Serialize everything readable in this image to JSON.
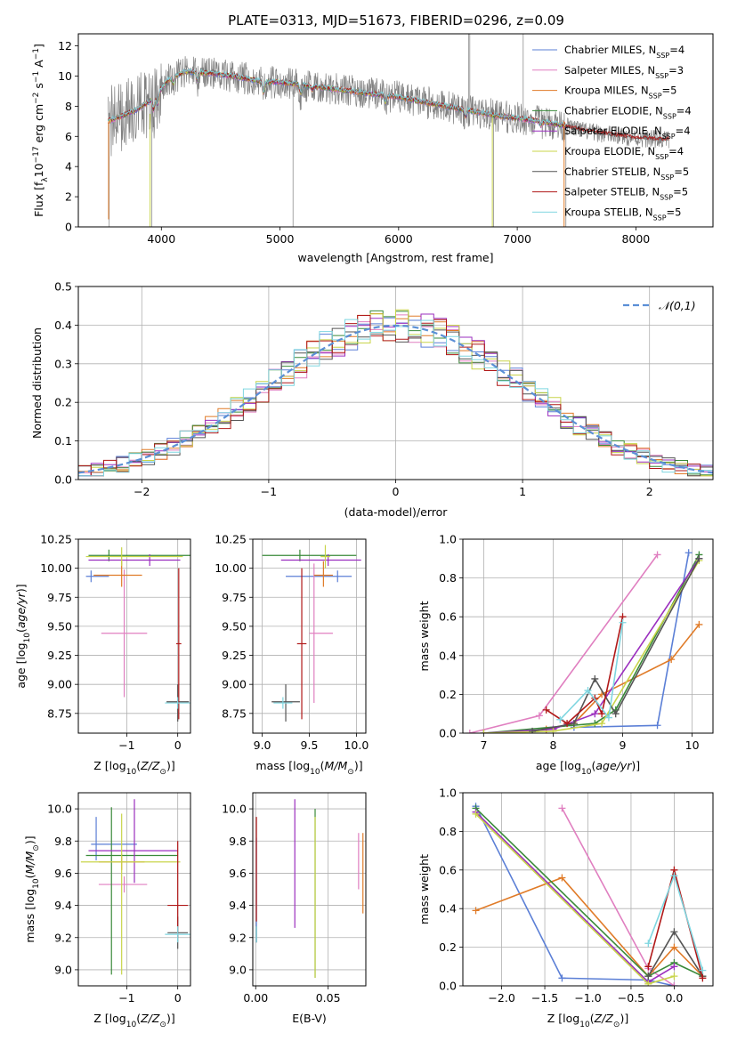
{
  "figure_title": "PLATE=0313, MJD=51673, FIBERID=0296, z=0.09",
  "colors": {
    "Chabrier MILES": "#5b7fd6",
    "Salpeter MILES": "#e07fc0",
    "Kroupa MILES": "#e07b28",
    "Chabrier ELODIE": "#3a8a3a",
    "Salpeter ELODIE": "#9b2fbf",
    "Kroupa ELODIE": "#c8d44a",
    "Chabrier STELIB": "#555555",
    "Salpeter STELIB": "#b01818",
    "Kroupa STELIB": "#7fd6e0"
  },
  "chart_data": [
    {
      "id": "spectrum",
      "type": "line",
      "title": "PLATE=0313, MJD=51673, FIBERID=0296, z=0.09",
      "xlabel": "wavelength [Angstrom, rest frame]",
      "ylabel": "Flux [f_λ10^-17 erg cm^-2 s^-1 A^-1]",
      "xlim": [
        3300,
        8650
      ],
      "ylim": [
        0,
        12.8
      ],
      "xticks": [
        4000,
        5000,
        6000,
        7000,
        8000
      ],
      "yticks": [
        0,
        2,
        4,
        6,
        8,
        10,
        12
      ],
      "grid": false,
      "legend_position": "top-right",
      "legend": [
        {
          "name": "Chabrier MILES",
          "nssp": "4"
        },
        {
          "name": "Salpeter MILES",
          "nssp": "3"
        },
        {
          "name": "Kroupa MILES",
          "nssp": "5"
        },
        {
          "name": "Chabrier ELODIE",
          "nssp": "4"
        },
        {
          "name": "Salpeter ELODIE",
          "nssp": "4"
        },
        {
          "name": "Kroupa ELODIE",
          "nssp": "4"
        },
        {
          "name": "Chabrier STELIB",
          "nssp": "5"
        },
        {
          "name": "Salpeter STELIB",
          "nssp": "5"
        },
        {
          "name": "Kroupa STELIB",
          "nssp": "5"
        }
      ],
      "continuum": {
        "x": [
          3550,
          3650,
          3800,
          3950,
          4050,
          4200,
          4400,
          4600,
          4800,
          4900,
          5000,
          5200,
          5400,
          5600,
          5800,
          6000,
          6200,
          6400,
          6600,
          6800,
          7000,
          7200,
          7400,
          7600,
          7800,
          8000,
          8200
        ],
        "y": [
          7.0,
          7.3,
          7.8,
          8.6,
          9.7,
          10.3,
          10.2,
          10.0,
          9.7,
          9.6,
          9.6,
          9.4,
          9.2,
          9.0,
          8.8,
          8.6,
          8.3,
          8.0,
          7.7,
          7.4,
          7.2,
          7.0,
          6.7,
          6.3,
          6.1,
          5.9,
          5.8
        ]
      },
      "model_spans": [
        [
          3550,
          7420
        ],
        [
          3550,
          7420
        ],
        [
          3550,
          7420
        ],
        [
          3550,
          7420
        ],
        [
          3550,
          7420
        ],
        [
          3550,
          7420
        ],
        [
          3550,
          8280
        ],
        [
          3550,
          8280
        ],
        [
          3550,
          7420
        ]
      ]
    },
    {
      "id": "residuals",
      "type": "line",
      "xlabel": "(data-model)/error",
      "ylabel": "Normed distribution",
      "xlim": [
        -2.5,
        2.5
      ],
      "ylim": [
        0,
        0.5
      ],
      "xticks": [
        -2,
        -1,
        0,
        1,
        2
      ],
      "yticks": [
        0.0,
        0.1,
        0.2,
        0.3,
        0.4,
        0.5
      ],
      "grid": true,
      "legend_position": "top-right",
      "reference_curve": {
        "name": "𝒩(0,1)",
        "mean": 0,
        "sigma": 1,
        "color": "#5b8fd6"
      },
      "bin_width": 0.1
    },
    {
      "id": "age-vs-Z",
      "type": "scatter",
      "xlabel": "Z [log10(Z/Z⊙)]",
      "ylabel": "age  [log10(age/yr)]",
      "xlim": [
        -1.95,
        0.25
      ],
      "ylim": [
        8.58,
        10.25
      ],
      "xticks": [
        -1,
        0
      ],
      "yticks": [
        8.75,
        9.0,
        9.25,
        9.5,
        9.75,
        10.0,
        10.25
      ],
      "grid": true,
      "points": [
        {
          "model": "Chabrier MILES",
          "x": -1.7,
          "xerr": [
            0.1,
            0.35
          ],
          "y": 9.93,
          "yerr": [
            0.05,
            0.05
          ]
        },
        {
          "model": "Salpeter MILES",
          "x": -1.05,
          "xerr": [
            0.45,
            0.45
          ],
          "y": 9.44,
          "yerr": [
            0.55,
            0.55
          ]
        },
        {
          "model": "Kroupa MILES",
          "x": -1.1,
          "xerr": [
            0.55,
            0.4
          ],
          "y": 9.94,
          "yerr": [
            0.1,
            0.12
          ]
        },
        {
          "model": "Chabrier ELODIE",
          "x": -1.35,
          "xerr": [
            0.4,
            1.6
          ],
          "y": 10.11,
          "yerr": [
            0.05,
            0.05
          ]
        },
        {
          "model": "Salpeter ELODIE",
          "x": -0.55,
          "xerr": [
            1.2,
            0.6
          ],
          "y": 10.07,
          "yerr": [
            0.05,
            0.05
          ]
        },
        {
          "model": "Kroupa ELODIE",
          "x": -1.1,
          "xerr": [
            0.7,
            1.2
          ],
          "y": 10.1,
          "yerr": [
            0.08,
            0.08
          ]
        },
        {
          "model": "Chabrier STELIB",
          "x": 0.0,
          "xerr": [
            0.22,
            0.22
          ],
          "y": 8.85,
          "yerr": [
            0.17,
            0.15
          ]
        },
        {
          "model": "Salpeter STELIB",
          "x": 0.02,
          "xerr": [
            0.05,
            0.05
          ],
          "y": 9.35,
          "yerr": [
            0.65,
            0.65
          ]
        },
        {
          "model": "Kroupa STELIB",
          "x": 0.0,
          "xerr": [
            0.25,
            0.25
          ],
          "y": 8.84,
          "yerr": [
            0.05,
            0.05
          ]
        }
      ]
    },
    {
      "id": "age-vs-mass",
      "type": "scatter",
      "xlabel": "mass [log10(M/M⊙)]",
      "ylabel": "",
      "xlim": [
        8.9,
        10.1
      ],
      "ylim": [
        8.58,
        10.25
      ],
      "xticks": [
        9.0,
        9.5,
        10.0
      ],
      "yticks": [
        8.75,
        9.0,
        9.25,
        9.5,
        9.75,
        10.0,
        10.25
      ],
      "grid": true,
      "points": [
        {
          "model": "Chabrier MILES",
          "x": 9.8,
          "xerr": [
            0.55,
            0.15
          ],
          "y": 9.93,
          "yerr": [
            0.05,
            0.05
          ]
        },
        {
          "model": "Salpeter MILES",
          "x": 9.55,
          "xerr": [
            0.05,
            0.2
          ],
          "y": 9.44,
          "yerr": [
            0.6,
            0.6
          ]
        },
        {
          "model": "Kroupa MILES",
          "x": 9.65,
          "xerr": [
            0.1,
            0.1
          ],
          "y": 9.94,
          "yerr": [
            0.1,
            0.12
          ]
        },
        {
          "model": "Chabrier ELODIE",
          "x": 9.4,
          "xerr": [
            0.4,
            0.6
          ],
          "y": 10.11,
          "yerr": [
            0.05,
            0.05
          ]
        },
        {
          "model": "Salpeter ELODIE",
          "x": 9.7,
          "xerr": [
            0.5,
            0.35
          ],
          "y": 10.07,
          "yerr": [
            0.05,
            0.05
          ]
        },
        {
          "model": "Kroupa ELODIE",
          "x": 9.67,
          "xerr": [
            0.05,
            0.05
          ],
          "y": 10.1,
          "yerr": [
            0.1,
            0.1
          ]
        },
        {
          "model": "Chabrier STELIB",
          "x": 9.25,
          "xerr": [
            0.15,
            0.15
          ],
          "y": 8.85,
          "yerr": [
            0.17,
            0.15
          ]
        },
        {
          "model": "Salpeter STELIB",
          "x": 9.42,
          "xerr": [
            0.05,
            0.05
          ],
          "y": 9.35,
          "yerr": [
            0.65,
            0.65
          ]
        },
        {
          "model": "Kroupa STELIB",
          "x": 9.22,
          "xerr": [
            0.1,
            0.1
          ],
          "y": 8.84,
          "yerr": [
            0.05,
            0.05
          ]
        }
      ]
    },
    {
      "id": "weight-vs-age",
      "type": "line",
      "xlabel": "age  [log10(age/yr)]",
      "ylabel": "mass weight",
      "xlim": [
        6.7,
        10.3
      ],
      "ylim": [
        0.0,
        1.0
      ],
      "xticks": [
        7,
        8,
        9,
        10
      ],
      "yticks": [
        0.0,
        0.2,
        0.4,
        0.6,
        0.8,
        1.0
      ],
      "grid": true,
      "series": [
        {
          "model": "Chabrier MILES",
          "x": [
            8.3,
            9.5,
            9.95
          ],
          "y": [
            0.03,
            0.04,
            0.93
          ]
        },
        {
          "model": "Salpeter MILES",
          "x": [
            6.8,
            7.8,
            9.5
          ],
          "y": [
            0.0,
            0.09,
            0.92
          ]
        },
        {
          "model": "Kroupa MILES",
          "x": [
            7.9,
            8.3,
            8.7,
            9.7,
            10.1
          ],
          "y": [
            0.02,
            0.05,
            0.2,
            0.38,
            0.56
          ]
        },
        {
          "model": "Chabrier ELODIE",
          "x": [
            7.0,
            8.6,
            8.9,
            10.1
          ],
          "y": [
            0.0,
            0.05,
            0.12,
            0.92
          ]
        },
        {
          "model": "Salpeter ELODIE",
          "x": [
            7.0,
            8.0,
            8.6,
            10.1
          ],
          "y": [
            0.0,
            0.02,
            0.1,
            0.9
          ]
        },
        {
          "model": "Kroupa ELODIE",
          "x": [
            7.0,
            8.0,
            8.7,
            10.1
          ],
          "y": [
            0.0,
            0.01,
            0.05,
            0.89
          ]
        },
        {
          "model": "Chabrier STELIB",
          "x": [
            7.7,
            8.3,
            8.6,
            8.9,
            10.1
          ],
          "y": [
            0.01,
            0.05,
            0.28,
            0.1,
            0.9
          ]
        },
        {
          "model": "Salpeter STELIB",
          "x": [
            7.9,
            8.2,
            8.6,
            8.7,
            9.0
          ],
          "y": [
            0.12,
            0.05,
            0.18,
            0.1,
            0.6
          ]
        },
        {
          "model": "Kroupa STELIB",
          "x": [
            8.1,
            8.5,
            8.8,
            9.0
          ],
          "y": [
            0.07,
            0.22,
            0.08,
            0.57
          ]
        }
      ]
    },
    {
      "id": "mass-vs-Z",
      "type": "scatter",
      "xlabel": "Z [log10(Z/Z⊙)]",
      "ylabel": "mass [log10(M/M⊙)]",
      "xlim": [
        -1.95,
        0.25
      ],
      "ylim": [
        8.9,
        10.1
      ],
      "xticks": [
        -1,
        0
      ],
      "yticks": [
        9.0,
        9.2,
        9.4,
        9.6,
        9.8,
        10.0
      ],
      "grid": true,
      "points": [
        {
          "model": "Chabrier MILES",
          "x": -1.6,
          "xerr": [
            0.1,
            0.8
          ],
          "y": 9.78,
          "yerr": [
            0.1,
            0.17
          ]
        },
        {
          "model": "Salpeter MILES",
          "x": -1.05,
          "xerr": [
            0.5,
            0.45
          ],
          "y": 9.53,
          "yerr": [
            0.05,
            0.05
          ]
        },
        {
          "model": "Kroupa MILES",
          "x": -1.1,
          "xerr": [
            0.45,
            0.45
          ],
          "y": 9.67,
          "yerr": [
            0.05,
            0.05
          ]
        },
        {
          "model": "Chabrier ELODIE",
          "x": -1.3,
          "xerr": [
            0.5,
            1.3
          ],
          "y": 9.71,
          "yerr": [
            0.74,
            0.3
          ]
        },
        {
          "model": "Salpeter ELODIE",
          "x": -0.85,
          "xerr": [
            0.9,
            0.85
          ],
          "y": 9.74,
          "yerr": [
            0.2,
            0.32
          ]
        },
        {
          "model": "Kroupa ELODIE",
          "x": -1.1,
          "xerr": [
            0.8,
            1.15
          ],
          "y": 9.67,
          "yerr": [
            0.7,
            0.3
          ]
        },
        {
          "model": "Chabrier STELIB",
          "x": 0.0,
          "xerr": [
            0.2,
            0.2
          ],
          "y": 9.23,
          "yerr": [
            0.1,
            0.1
          ]
        },
        {
          "model": "Salpeter STELIB",
          "x": 0.0,
          "xerr": [
            0.2,
            0.2
          ],
          "y": 9.4,
          "yerr": [
            0.2,
            0.4
          ]
        },
        {
          "model": "Kroupa STELIB",
          "x": 0.0,
          "xerr": [
            0.25,
            0.25
          ],
          "y": 9.22,
          "yerr": [
            0.05,
            0.05
          ]
        }
      ]
    },
    {
      "id": "mass-vs-ebv",
      "type": "scatter",
      "xlabel": "E(B-V)",
      "ylabel": "",
      "xlim": [
        -0.002,
        0.076
      ],
      "ylim": [
        8.9,
        10.1
      ],
      "xticks": [
        0.0,
        0.05
      ],
      "yticks": [
        9.0,
        9.2,
        9.4,
        9.6,
        9.8,
        10.0
      ],
      "grid": true,
      "points": [
        {
          "model": "Chabrier MILES",
          "x": 0.0005,
          "y": 9.22,
          "yerr": [
            0.05,
            0.6
          ]
        },
        {
          "model": "Salpeter MILES",
          "x": 0.071,
          "y": 9.7,
          "yerr": [
            0.2,
            0.15
          ]
        },
        {
          "model": "Kroupa MILES",
          "x": 0.074,
          "y": 9.6,
          "yerr": [
            0.25,
            0.25
          ]
        },
        {
          "model": "Chabrier ELODIE",
          "x": 0.041,
          "y": 9.5,
          "yerr": [
            0.55,
            0.5
          ]
        },
        {
          "model": "Salpeter ELODIE",
          "x": 0.027,
          "y": 9.66,
          "yerr": [
            0.4,
            0.4
          ]
        },
        {
          "model": "Kroupa ELODIE",
          "x": 0.041,
          "y": 9.5,
          "yerr": [
            0.55,
            0.45
          ]
        },
        {
          "model": "Chabrier STELIB",
          "x": 0.0005,
          "y": 9.22,
          "yerr": [
            0.05,
            0.05
          ]
        },
        {
          "model": "Salpeter STELIB",
          "x": 0.0005,
          "y": 9.6,
          "yerr": [
            0.3,
            0.35
          ]
        },
        {
          "model": "Kroupa STELIB",
          "x": 0.0005,
          "y": 9.22,
          "yerr": [
            0.05,
            0.05
          ]
        }
      ]
    },
    {
      "id": "weight-vs-Z",
      "type": "line",
      "xlabel": "Z [log10(Z/Z⊙)]",
      "ylabel": "mass weight",
      "xlim": [
        -2.45,
        0.45
      ],
      "ylim": [
        0.0,
        1.0
      ],
      "xticks": [
        -2.0,
        -1.5,
        -1.0,
        -0.5,
        0.0
      ],
      "yticks": [
        0.0,
        0.2,
        0.4,
        0.6,
        0.8,
        1.0
      ],
      "grid": true,
      "series": [
        {
          "model": "Chabrier MILES",
          "x": [
            -2.3,
            -1.3,
            -0.3,
            0.0
          ],
          "y": [
            0.93,
            0.04,
            0.03,
            0.0
          ]
        },
        {
          "model": "Salpeter MILES",
          "x": [
            -1.3,
            -0.3,
            0.0
          ],
          "y": [
            0.92,
            0.09,
            0.0
          ]
        },
        {
          "model": "Kroupa MILES",
          "x": [
            -2.3,
            -1.3,
            -0.3,
            0.0,
            0.33
          ],
          "y": [
            0.39,
            0.56,
            0.05,
            0.2,
            0.05
          ]
        },
        {
          "model": "Chabrier ELODIE",
          "x": [
            -2.3,
            -0.3,
            0.0,
            0.33
          ],
          "y": [
            0.92,
            0.05,
            0.12,
            0.05
          ]
        },
        {
          "model": "Salpeter ELODIE",
          "x": [
            -2.3,
            -0.3,
            0.0
          ],
          "y": [
            0.9,
            0.02,
            0.1
          ]
        },
        {
          "model": "Kroupa ELODIE",
          "x": [
            -2.3,
            -0.3,
            0.0
          ],
          "y": [
            0.89,
            0.01,
            0.05
          ]
        },
        {
          "model": "Chabrier STELIB",
          "x": [
            -0.3,
            0.0,
            0.33
          ],
          "y": [
            0.05,
            0.28,
            0.05
          ]
        },
        {
          "model": "Salpeter STELIB",
          "x": [
            -0.3,
            0.0,
            0.33
          ],
          "y": [
            0.1,
            0.6,
            0.04
          ]
        },
        {
          "model": "Kroupa STELIB",
          "x": [
            -0.3,
            0.0,
            0.33
          ],
          "y": [
            0.22,
            0.57,
            0.08
          ]
        }
      ]
    }
  ]
}
